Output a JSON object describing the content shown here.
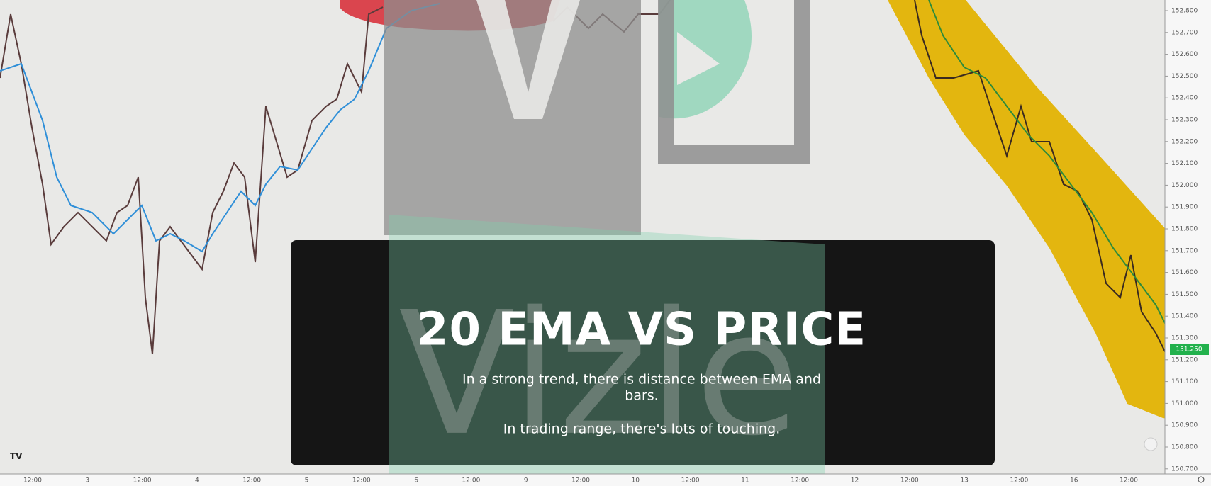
{
  "price_axis": {
    "labels": [
      "152.800",
      "152.700",
      "152.600",
      "152.500",
      "152.400",
      "152.300",
      "152.200",
      "152.100",
      "152.000",
      "151.900",
      "151.800",
      "151.700",
      "151.600",
      "151.500",
      "151.400",
      "151.300",
      "151.200",
      "151.100",
      "151.000",
      "150.900",
      "150.800",
      "150.700"
    ],
    "current_price": "151.250"
  },
  "time_axis": {
    "labels": [
      "12:00",
      "3",
      "12:00",
      "4",
      "12:00",
      "5",
      "12:00",
      "6",
      "12:00",
      "9",
      "12:00",
      "10",
      "12:00",
      "11",
      "12:00",
      "12",
      "12:00",
      "13",
      "12:00",
      "16",
      "12:00"
    ]
  },
  "watermark": "Vizle",
  "card": {
    "title": "20 EMA VS PRICE",
    "lines": [
      "In a strong trend, there is distance between EMA and",
      "bars.",
      "In trading range, there's lots of touching."
    ]
  }
}
